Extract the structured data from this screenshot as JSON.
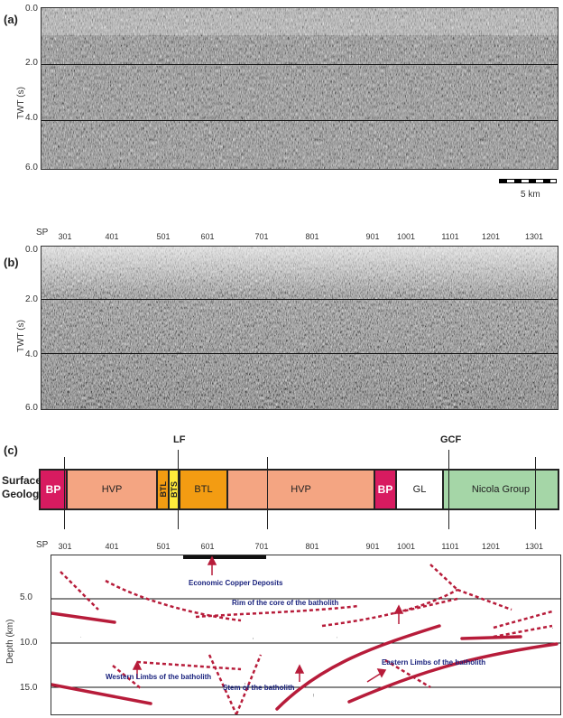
{
  "panels": {
    "a": {
      "label": "(a)",
      "ylabel": "TWT (s)",
      "yticks": [
        "0.0",
        "2.0",
        "4.0",
        "6.0"
      ]
    },
    "b": {
      "label": "(b)",
      "ylabel": "TWT (s)",
      "yticks": [
        "0.0",
        "2.0",
        "4.0",
        "6.0"
      ]
    },
    "c": {
      "label": "(c)",
      "ylabel": "Depth (km)",
      "yticks": [
        "5.0",
        "10.0",
        "15.0"
      ]
    }
  },
  "scalebar": {
    "label": "5 km"
  },
  "sp": {
    "label": "SP",
    "values": [
      "301",
      "401",
      "501",
      "601",
      "701",
      "801",
      "901",
      "1001",
      "1101",
      "1201",
      "1301"
    ]
  },
  "faults": {
    "lf": "LF",
    "gcf": "GCF"
  },
  "surface_geology": {
    "label_line1": "Surface",
    "label_line2": "Geology",
    "units": [
      {
        "name": "BP",
        "color": "#d81b60"
      },
      {
        "name": "HVP",
        "color": "#f4a582"
      },
      {
        "name": "BTL",
        "color": "#f39c12"
      },
      {
        "name": "BTS",
        "color": "#ffeb3b"
      },
      {
        "name": "BTL",
        "color": "#f39c12"
      },
      {
        "name": "HVP",
        "color": "#f4a582"
      },
      {
        "name": "BP",
        "color": "#d81b60"
      },
      {
        "name": "GL",
        "color": "#ffffff"
      },
      {
        "name": "Nicola Group",
        "color": "#a5d6a7"
      }
    ]
  },
  "annotations": {
    "copper": "Economic Copper Deposits",
    "rim": "Rim of the core of the batholith",
    "western": "Western Limbs of the batholith",
    "eastern": "Eastern Limbs of the batholith",
    "stem": "Stem of the batholith"
  },
  "colors": {
    "interpretation": "#b71c3a",
    "annotation_text": "#1a237e"
  }
}
